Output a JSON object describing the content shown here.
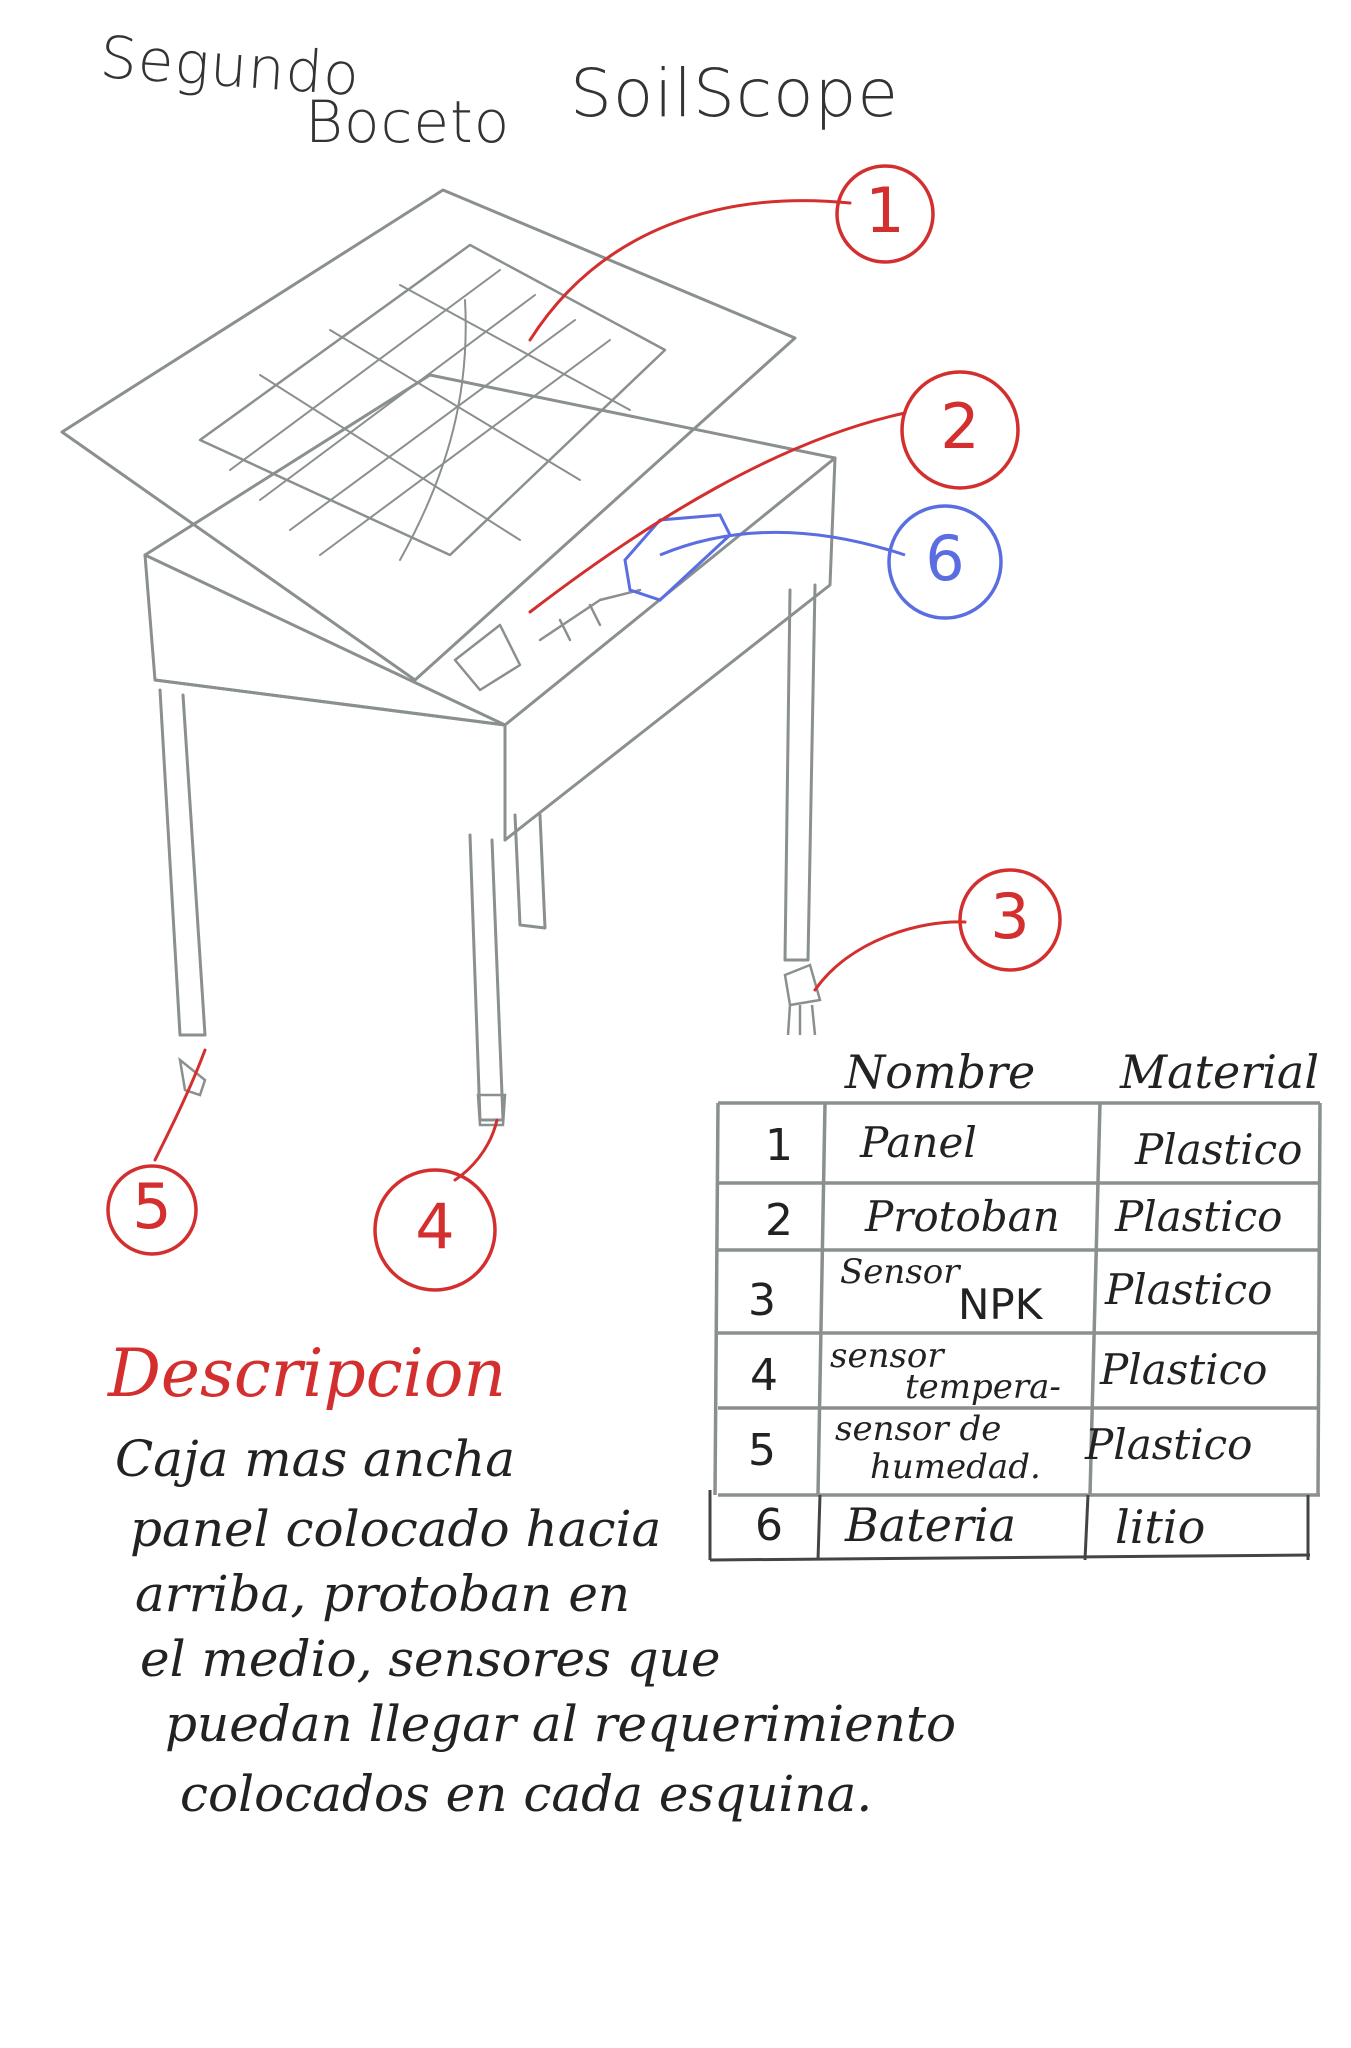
{
  "title": {
    "line1": "Segundo",
    "line2": "Boceto",
    "name": "SoilScope"
  },
  "colors": {
    "callout": "#d32f2f",
    "battery_callout": "#5b6ee1",
    "sketch": "#8a8f8f",
    "ink": "#222222"
  },
  "callouts": [
    "1",
    "2",
    "3",
    "4",
    "5",
    "6"
  ],
  "table": {
    "headers": {
      "name": "Nombre",
      "material": "Material"
    },
    "rows": [
      {
        "num": "1",
        "name": "Panel",
        "material": "Plastico"
      },
      {
        "num": "2",
        "name": "Protoban",
        "material": "Plastico"
      },
      {
        "num": "3",
        "name_a": "Sensor",
        "name_b": "NPK",
        "material": "Plastico"
      },
      {
        "num": "4",
        "name_a": "sensor",
        "name_b": "tempera-",
        "material": "Plastico"
      },
      {
        "num": "5",
        "name_a": "sensor de",
        "name_b": "humedad.",
        "material": "Plastico"
      },
      {
        "num": "6",
        "name": "Bateria",
        "material": "litio"
      }
    ]
  },
  "description": {
    "heading": "Descripcion",
    "lines": [
      "Caja mas ancha",
      "panel colocado hacia",
      "arriba, protoban en",
      "el medio, sensores que",
      "puedan llegar al requerimiento",
      "colocados en cada esquina."
    ]
  }
}
